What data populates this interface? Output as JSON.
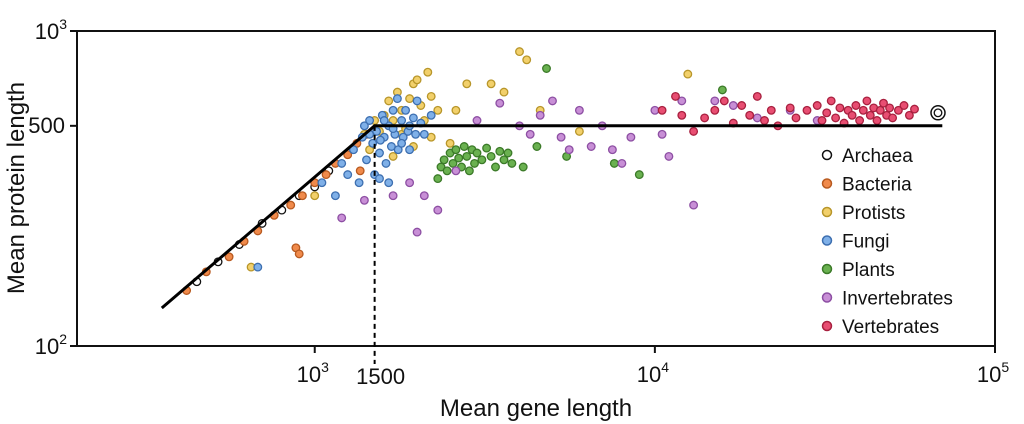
{
  "chart_data": {
    "type": "scatter",
    "title": "",
    "xlabel": "Mean gene length",
    "ylabel": "Mean protein length",
    "x_scale": "log",
    "y_scale": "log",
    "xlim": [
      200,
      100000
    ],
    "ylim": [
      100,
      1000
    ],
    "x_ticks": [
      {
        "value": 1000,
        "base": "10",
        "exp": "3"
      },
      {
        "value": 10000,
        "base": "10",
        "exp": "4"
      },
      {
        "value": 100000,
        "base": "10",
        "exp": "5"
      }
    ],
    "y_ticks": [
      {
        "value": 100,
        "base": "10",
        "exp": "2"
      },
      {
        "value": 500,
        "label": "500"
      },
      {
        "value": 1000,
        "base": "10",
        "exp": "3"
      }
    ],
    "breakpoint": {
      "x": 1500,
      "y": 500,
      "label": "1500"
    },
    "fit_line": [
      [
        355,
        132
      ],
      [
        1500,
        500
      ],
      [
        70000,
        500
      ]
    ],
    "legend_position": "right",
    "series": [
      {
        "name": "Archaea",
        "color": "#ffffff",
        "stroke": "#111111",
        "points": [
          [
            450,
            160
          ],
          [
            520,
            185
          ],
          [
            600,
            210
          ],
          [
            700,
            245
          ],
          [
            800,
            270
          ],
          [
            900,
            300
          ],
          [
            1000,
            320
          ],
          [
            1100,
            360
          ],
          [
            1250,
            410
          ],
          [
            68000,
            550
          ]
        ]
      },
      {
        "name": "Bacteria",
        "color": "#f08a4b",
        "stroke": "#b85a20",
        "points": [
          [
            420,
            150
          ],
          [
            480,
            172
          ],
          [
            560,
            192
          ],
          [
            620,
            215
          ],
          [
            680,
            232
          ],
          [
            760,
            260
          ],
          [
            850,
            280
          ],
          [
            920,
            300
          ],
          [
            880,
            205
          ],
          [
            900,
            196
          ],
          [
            1000,
            330
          ],
          [
            1080,
            350
          ],
          [
            1150,
            380
          ],
          [
            1250,
            405
          ],
          [
            1330,
            440
          ],
          [
            1420,
            470
          ],
          [
            1360,
            360
          ]
        ]
      },
      {
        "name": "Protists",
        "color": "#f2d06b",
        "stroke": "#b8962a",
        "points": [
          [
            650,
            178
          ],
          [
            1000,
            300
          ],
          [
            1400,
            470
          ],
          [
            1450,
            420
          ],
          [
            1500,
            520
          ],
          [
            1550,
            480
          ],
          [
            1600,
            540
          ],
          [
            1650,
            600
          ],
          [
            1700,
            520
          ],
          [
            1700,
            400
          ],
          [
            1750,
            640
          ],
          [
            1800,
            470
          ],
          [
            1800,
            560
          ],
          [
            1850,
            490
          ],
          [
            1900,
            610
          ],
          [
            1950,
            430
          ],
          [
            1950,
            680
          ],
          [
            2000,
            700
          ],
          [
            2050,
            580
          ],
          [
            2100,
            520
          ],
          [
            2150,
            740
          ],
          [
            2200,
            620
          ],
          [
            2200,
            460
          ],
          [
            2300,
            560
          ],
          [
            2500,
            440
          ],
          [
            2600,
            560
          ],
          [
            2800,
            680
          ],
          [
            3300,
            680
          ],
          [
            3600,
            640
          ],
          [
            4000,
            860
          ],
          [
            4200,
            810
          ],
          [
            4600,
            560
          ],
          [
            6000,
            480
          ],
          [
            12500,
            730
          ]
        ]
      },
      {
        "name": "Fungi",
        "color": "#7fb0e8",
        "stroke": "#3d6fb0",
        "points": [
          [
            680,
            178
          ],
          [
            1050,
            330
          ],
          [
            1150,
            300
          ],
          [
            1200,
            380
          ],
          [
            1250,
            350
          ],
          [
            1300,
            420
          ],
          [
            1350,
            330
          ],
          [
            1380,
            460
          ],
          [
            1420,
            390
          ],
          [
            1450,
            520
          ],
          [
            1480,
            440
          ],
          [
            1500,
            350
          ],
          [
            1520,
            480
          ],
          [
            1550,
            410
          ],
          [
            1580,
            540
          ],
          [
            1600,
            460
          ],
          [
            1620,
            380
          ],
          [
            1650,
            500
          ],
          [
            1680,
            430
          ],
          [
            1700,
            560
          ],
          [
            1720,
            470
          ],
          [
            1750,
            610
          ],
          [
            1760,
            420
          ],
          [
            1800,
            520
          ],
          [
            1820,
            460
          ],
          [
            1850,
            560
          ],
          [
            1880,
            480
          ],
          [
            1900,
            420
          ],
          [
            1950,
            530
          ],
          [
            1980,
            470
          ],
          [
            2000,
            600
          ],
          [
            2050,
            510
          ],
          [
            2100,
            470
          ],
          [
            2200,
            540
          ],
          [
            1650,
            330
          ],
          [
            1550,
            340
          ],
          [
            1450,
            470
          ],
          [
            1700,
            490
          ],
          [
            1900,
            500
          ],
          [
            1800,
            440
          ],
          [
            1600,
            520
          ],
          [
            1560,
            450
          ],
          [
            1400,
            500
          ]
        ]
      },
      {
        "name": "Plants",
        "color": "#6ab150",
        "stroke": "#3b7a28",
        "points": [
          [
            2300,
            340
          ],
          [
            2350,
            370
          ],
          [
            2400,
            390
          ],
          [
            2450,
            360
          ],
          [
            2500,
            410
          ],
          [
            2550,
            380
          ],
          [
            2600,
            420
          ],
          [
            2650,
            395
          ],
          [
            2700,
            370
          ],
          [
            2750,
            430
          ],
          [
            2800,
            400
          ],
          [
            2850,
            360
          ],
          [
            2900,
            420
          ],
          [
            2950,
            380
          ],
          [
            3000,
            410
          ],
          [
            3100,
            390
          ],
          [
            3200,
            425
          ],
          [
            3300,
            400
          ],
          [
            3400,
            370
          ],
          [
            3500,
            415
          ],
          [
            3600,
            390
          ],
          [
            3700,
            410
          ],
          [
            3800,
            380
          ],
          [
            4100,
            370
          ],
          [
            4500,
            430
          ],
          [
            4800,
            760
          ],
          [
            5500,
            400
          ],
          [
            7600,
            380
          ],
          [
            15800,
            650
          ],
          [
            9000,
            350
          ]
        ]
      },
      {
        "name": "Invertebrates",
        "color": "#c88fd6",
        "stroke": "#8d4fa3",
        "points": [
          [
            1200,
            255
          ],
          [
            1400,
            290
          ],
          [
            1700,
            300
          ],
          [
            1900,
            330
          ],
          [
            2100,
            300
          ],
          [
            2300,
            270
          ],
          [
            2000,
            230
          ],
          [
            2600,
            360
          ],
          [
            3000,
            520
          ],
          [
            3500,
            590
          ],
          [
            4000,
            500
          ],
          [
            4300,
            470
          ],
          [
            4600,
            540
          ],
          [
            5000,
            600
          ],
          [
            5300,
            460
          ],
          [
            5600,
            420
          ],
          [
            6000,
            560
          ],
          [
            6500,
            430
          ],
          [
            7000,
            500
          ],
          [
            7500,
            420
          ],
          [
            8000,
            380
          ],
          [
            8500,
            460
          ],
          [
            10000,
            560
          ],
          [
            10500,
            470
          ],
          [
            11000,
            400
          ],
          [
            12000,
            600
          ],
          [
            13000,
            280
          ],
          [
            15000,
            600
          ],
          [
            17000,
            580
          ],
          [
            20000,
            530
          ],
          [
            25000,
            560
          ],
          [
            30000,
            520
          ]
        ]
      },
      {
        "name": "Vertebrates",
        "color": "#e84e72",
        "stroke": "#a8203f",
        "points": [
          [
            10500,
            560
          ],
          [
            11500,
            620
          ],
          [
            12000,
            540
          ],
          [
            13000,
            480
          ],
          [
            14000,
            530
          ],
          [
            15000,
            560
          ],
          [
            16000,
            600
          ],
          [
            17000,
            510
          ],
          [
            18000,
            580
          ],
          [
            19000,
            540
          ],
          [
            20000,
            620
          ],
          [
            21000,
            520
          ],
          [
            22000,
            560
          ],
          [
            23000,
            500
          ],
          [
            25000,
            570
          ],
          [
            26000,
            530
          ],
          [
            28000,
            560
          ],
          [
            30000,
            580
          ],
          [
            31000,
            520
          ],
          [
            32000,
            550
          ],
          [
            33000,
            600
          ],
          [
            34000,
            530
          ],
          [
            35000,
            570
          ],
          [
            36000,
            510
          ],
          [
            37000,
            560
          ],
          [
            38000,
            540
          ],
          [
            39000,
            580
          ],
          [
            40000,
            520
          ],
          [
            41000,
            560
          ],
          [
            42000,
            600
          ],
          [
            43000,
            540
          ],
          [
            44000,
            570
          ],
          [
            45000,
            520
          ],
          [
            46000,
            560
          ],
          [
            47000,
            590
          ],
          [
            48000,
            540
          ],
          [
            49000,
            570
          ],
          [
            50000,
            530
          ],
          [
            52000,
            560
          ],
          [
            54000,
            580
          ],
          [
            56000,
            540
          ],
          [
            58000,
            565
          ]
        ]
      }
    ]
  }
}
